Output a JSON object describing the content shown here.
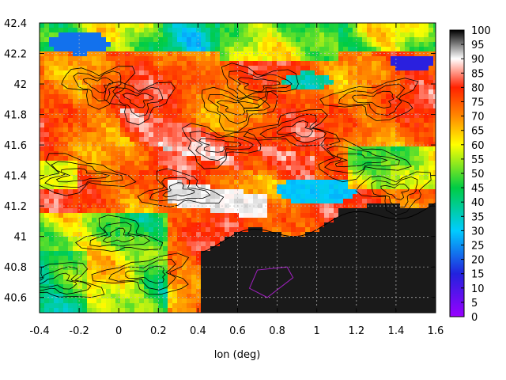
{
  "chart_data": {
    "type": "heatmap",
    "title": "",
    "xlabel": "lon (deg)",
    "ylabel": "",
    "xlim": [
      -0.4,
      1.6
    ],
    "ylim": [
      40.5,
      42.4
    ],
    "x_ticks": [
      "-0.4",
      "-0.2",
      "0",
      "0.2",
      "0.4",
      "0.6",
      "0.8",
      "1",
      "1.2",
      "1.4",
      "1.6"
    ],
    "y_ticks": [
      "40.6",
      "40.8",
      "41",
      "41.2",
      "41.4",
      "41.6",
      "41.8",
      "42",
      "42.2",
      "42.4"
    ],
    "colorbar": {
      "min": 0,
      "max": 100,
      "ticks": [
        "0",
        "5",
        "10",
        "15",
        "20",
        "25",
        "30",
        "35",
        "40",
        "45",
        "50",
        "55",
        "60",
        "65",
        "70",
        "75",
        "80",
        "85",
        "90",
        "95",
        "100"
      ],
      "palette": [
        "#9900ff",
        "#2222dd",
        "#00ccff",
        "#00cc44",
        "#ffff00",
        "#ff8800",
        "#ff2200",
        "#ffffff",
        "#000000"
      ]
    },
    "grid": true,
    "contours": true,
    "regions": {
      "dark_sea_region": {
        "lon": [
          0.4,
          1.6
        ],
        "lat": [
          40.5,
          41.1
        ],
        "value": 100
      },
      "green_blue_patch_east": {
        "lon": [
          0.8,
          1.2
        ],
        "lat": [
          41.2,
          41.35
        ],
        "value": 35
      },
      "blue_patch_northwest": {
        "lon": [
          -0.3,
          0.0
        ],
        "lat": [
          42.2,
          42.3
        ],
        "value": 25
      },
      "purple_patch_northeast": {
        "lon": [
          1.4,
          1.55
        ],
        "lat": [
          42.1,
          42.2
        ],
        "value": 15
      },
      "white_ridge_center": {
        "lon": [
          0.2,
          0.9
        ],
        "lat": [
          41.4,
          41.8
        ],
        "value": 92
      }
    }
  }
}
